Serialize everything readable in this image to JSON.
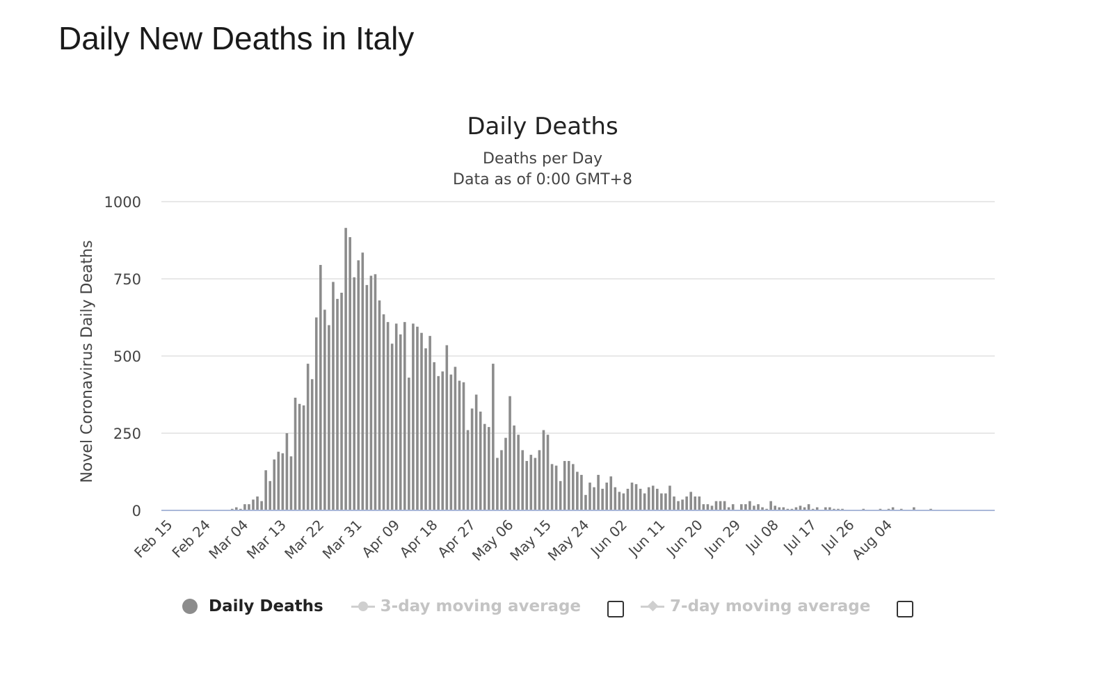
{
  "page": {
    "title": "Daily New Deaths in Italy"
  },
  "legend": {
    "items": [
      {
        "label": "Daily Deaths",
        "active": true
      },
      {
        "label": "3-day moving average",
        "active": false
      },
      {
        "label": "7-day moving average",
        "active": false
      }
    ]
  },
  "colors": {
    "bar": "#8c8c8c",
    "grid": "#e0e0e0",
    "baseline": "#aab8d9",
    "text": "#333333",
    "legend_inactive": "#c4c4c4"
  },
  "chart_data": {
    "type": "bar",
    "title": "Daily Deaths",
    "subtitle": [
      "Deaths per Day",
      "Data as of 0:00 GMT+8"
    ],
    "xlabel": "",
    "ylabel": "Novel Coronavirus Daily Deaths",
    "ylim": [
      0,
      1000
    ],
    "yticks": [
      0,
      250,
      500,
      750,
      1000
    ],
    "xticks": [
      "Feb 15",
      "Feb 24",
      "Mar 04",
      "Mar 13",
      "Mar 22",
      "Mar 31",
      "Apr 09",
      "Apr 18",
      "Apr 27",
      "May 06",
      "May 15",
      "May 24",
      "Jun 02",
      "Jun 11",
      "Jun 20",
      "Jun 29",
      "Jul 08",
      "Jul 17",
      "Jul 26",
      "Aug 04"
    ],
    "tick_interval_days": 9,
    "start_date": "Feb 15",
    "grid": true,
    "legend_position": "bottom",
    "series": [
      {
        "name": "Daily Deaths",
        "values": [
          0,
          0,
          0,
          0,
          0,
          0,
          0,
          0,
          0,
          0,
          0,
          0,
          0,
          0,
          0,
          5,
          10,
          5,
          20,
          20,
          35,
          45,
          30,
          130,
          95,
          165,
          190,
          185,
          250,
          175,
          365,
          345,
          340,
          475,
          425,
          625,
          795,
          650,
          600,
          740,
          685,
          705,
          915,
          885,
          755,
          810,
          835,
          730,
          760,
          765,
          680,
          635,
          610,
          540,
          605,
          570,
          610,
          430,
          605,
          595,
          575,
          525,
          565,
          480,
          435,
          450,
          535,
          440,
          465,
          420,
          415,
          260,
          330,
          375,
          320,
          280,
          270,
          475,
          170,
          195,
          235,
          370,
          275,
          245,
          195,
          160,
          180,
          170,
          195,
          260,
          245,
          150,
          145,
          95,
          160,
          160,
          150,
          125,
          115,
          50,
          90,
          75,
          115,
          70,
          90,
          110,
          75,
          60,
          55,
          70,
          90,
          85,
          70,
          55,
          75,
          80,
          70,
          55,
          55,
          80,
          45,
          30,
          35,
          45,
          60,
          45,
          45,
          20,
          20,
          15,
          30,
          30,
          30,
          10,
          20,
          0,
          20,
          20,
          30,
          15,
          20,
          10,
          5,
          30,
          15,
          10,
          10,
          5,
          5,
          10,
          15,
          10,
          20,
          5,
          10,
          0,
          10,
          10,
          5,
          5,
          5,
          0,
          0,
          0,
          0,
          5,
          0,
          0,
          0,
          5,
          0,
          5,
          10,
          0,
          5,
          0,
          0,
          10,
          0,
          0,
          0,
          5
        ]
      }
    ]
  }
}
